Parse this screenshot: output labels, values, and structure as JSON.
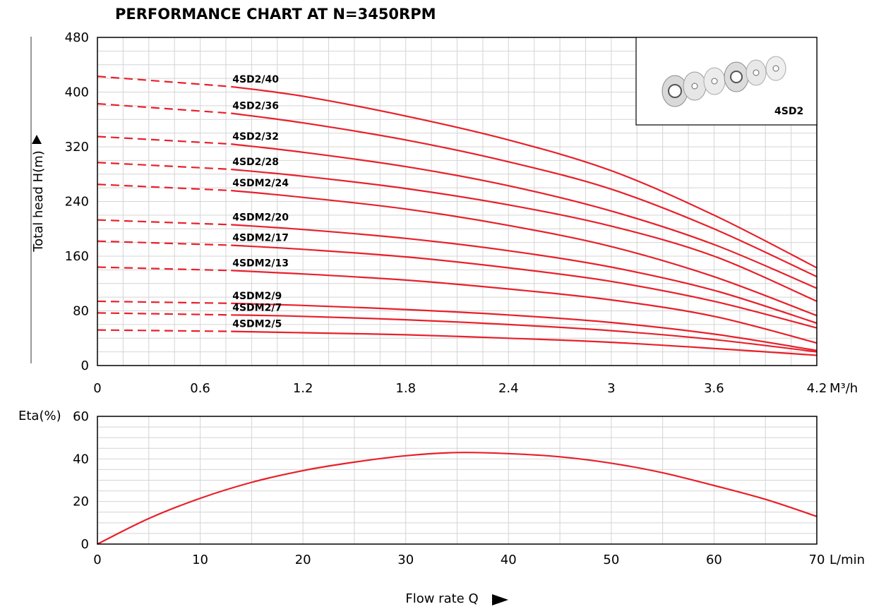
{
  "chart_data": [
    {
      "type": "line",
      "title": "PERFORMANCE CHART AT N=3450RPM",
      "ylabel": "Total head H(m)",
      "xunit": "M³/h",
      "xlim": [
        0,
        4.2
      ],
      "ylim": [
        0,
        480
      ],
      "xticks": [
        0,
        0.6,
        1.2,
        1.8,
        2.4,
        3,
        3.6,
        4.2
      ],
      "xtick_labels": [
        "0",
        "0.6",
        "1.2",
        "1.8",
        "2.4",
        "3",
        "3.6",
        "4.2"
      ],
      "yticks": [
        0,
        80,
        160,
        240,
        320,
        400,
        480
      ],
      "ytick_labels": [
        "0",
        "80",
        "160",
        "240",
        "320",
        "400",
        "480"
      ],
      "grid": true,
      "dashed_until_x": 0.78,
      "line_color": "#e8202a",
      "x": [
        0,
        0.78,
        1.2,
        1.8,
        2.4,
        3.0,
        3.6,
        4.2
      ],
      "series": [
        {
          "name": "4SD2/40",
          "values": [
            423,
            408,
            394,
            365,
            330,
            285,
            220,
            143
          ]
        },
        {
          "name": "4SD2/36",
          "values": [
            383,
            369,
            355,
            330,
            298,
            258,
            200,
            130
          ]
        },
        {
          "name": "4SD2/32",
          "values": [
            335,
            324,
            312,
            291,
            263,
            226,
            177,
            113
          ]
        },
        {
          "name": "4SD2/28",
          "values": [
            297,
            287,
            277,
            259,
            235,
            204,
            160,
            94
          ]
        },
        {
          "name": "4SDM2/24",
          "values": [
            265,
            256,
            246,
            229,
            205,
            174,
            130,
            73
          ]
        },
        {
          "name": "4SDM2/20",
          "values": [
            213,
            206,
            199,
            186,
            168,
            144,
            110,
            62
          ]
        },
        {
          "name": "4SDM2/17",
          "values": [
            182,
            176,
            170,
            159,
            143,
            123,
            94,
            55
          ]
        },
        {
          "name": "4SDM2/13",
          "values": [
            144,
            139,
            134,
            125,
            112,
            96,
            72,
            33
          ]
        },
        {
          "name": "4SDM2/9",
          "values": [
            94,
            91,
            88,
            82,
            74,
            63,
            46,
            22
          ]
        },
        {
          "name": "4SDM2/7",
          "values": [
            77,
            74,
            72,
            67,
            60,
            51,
            38,
            20
          ]
        },
        {
          "name": "4SDM2/5",
          "values": [
            52,
            50,
            48,
            45,
            40,
            34,
            25,
            15
          ]
        }
      ]
    },
    {
      "type": "line",
      "ylabel": "Eta(%)",
      "xlabel": "Flow rate Q",
      "xunit": "L/min",
      "xlim": [
        0,
        70
      ],
      "ylim": [
        0,
        60
      ],
      "xticks": [
        0,
        10,
        20,
        30,
        40,
        50,
        60,
        70
      ],
      "xtick_labels": [
        "0",
        "10",
        "20",
        "30",
        "40",
        "50",
        "60",
        "70"
      ],
      "yticks": [
        0,
        20,
        40,
        60
      ],
      "ytick_labels": [
        "0",
        "20",
        "40",
        "60"
      ],
      "grid": true,
      "line_color": "#e8202a",
      "x": [
        0,
        5,
        10,
        15,
        20,
        25,
        30,
        35,
        40,
        45,
        50,
        55,
        60,
        65,
        70
      ],
      "series": [
        {
          "values": [
            0,
            12,
            21.5,
            29,
            34.5,
            38.5,
            41.5,
            43,
            42.5,
            41,
            38,
            33.5,
            27.5,
            21,
            13
          ]
        }
      ]
    }
  ],
  "inset": {
    "label": "4SD2",
    "image_icon": "impeller-parts-icon"
  }
}
